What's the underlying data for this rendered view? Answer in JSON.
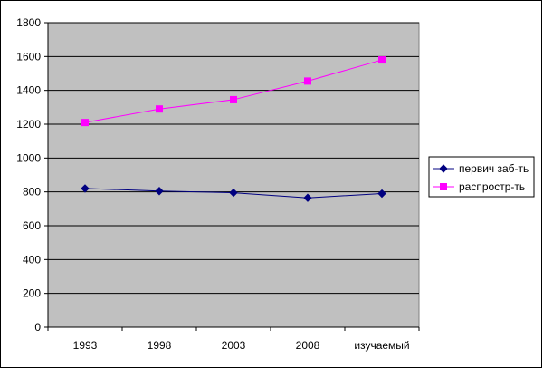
{
  "chart_data": {
    "type": "line",
    "categories": [
      "1993",
      "1998",
      "2003",
      "2008",
      "изучаемый"
    ],
    "series": [
      {
        "name": "первич заб-ть",
        "values": [
          820,
          805,
          795,
          765,
          790
        ],
        "color": "#000080",
        "marker": "diamond"
      },
      {
        "name": "распростр-ть",
        "values": [
          1210,
          1290,
          1345,
          1455,
          1580
        ],
        "color": "#FF00FF",
        "marker": "square"
      }
    ],
    "title": "",
    "xlabel": "",
    "ylabel": "",
    "ylim": [
      0,
      1800
    ],
    "yticks": [
      0,
      200,
      400,
      600,
      800,
      1000,
      1200,
      1400,
      1600,
      1800
    ],
    "grid": true,
    "legend_position": "right",
    "plot_background": "#C0C0C0"
  }
}
